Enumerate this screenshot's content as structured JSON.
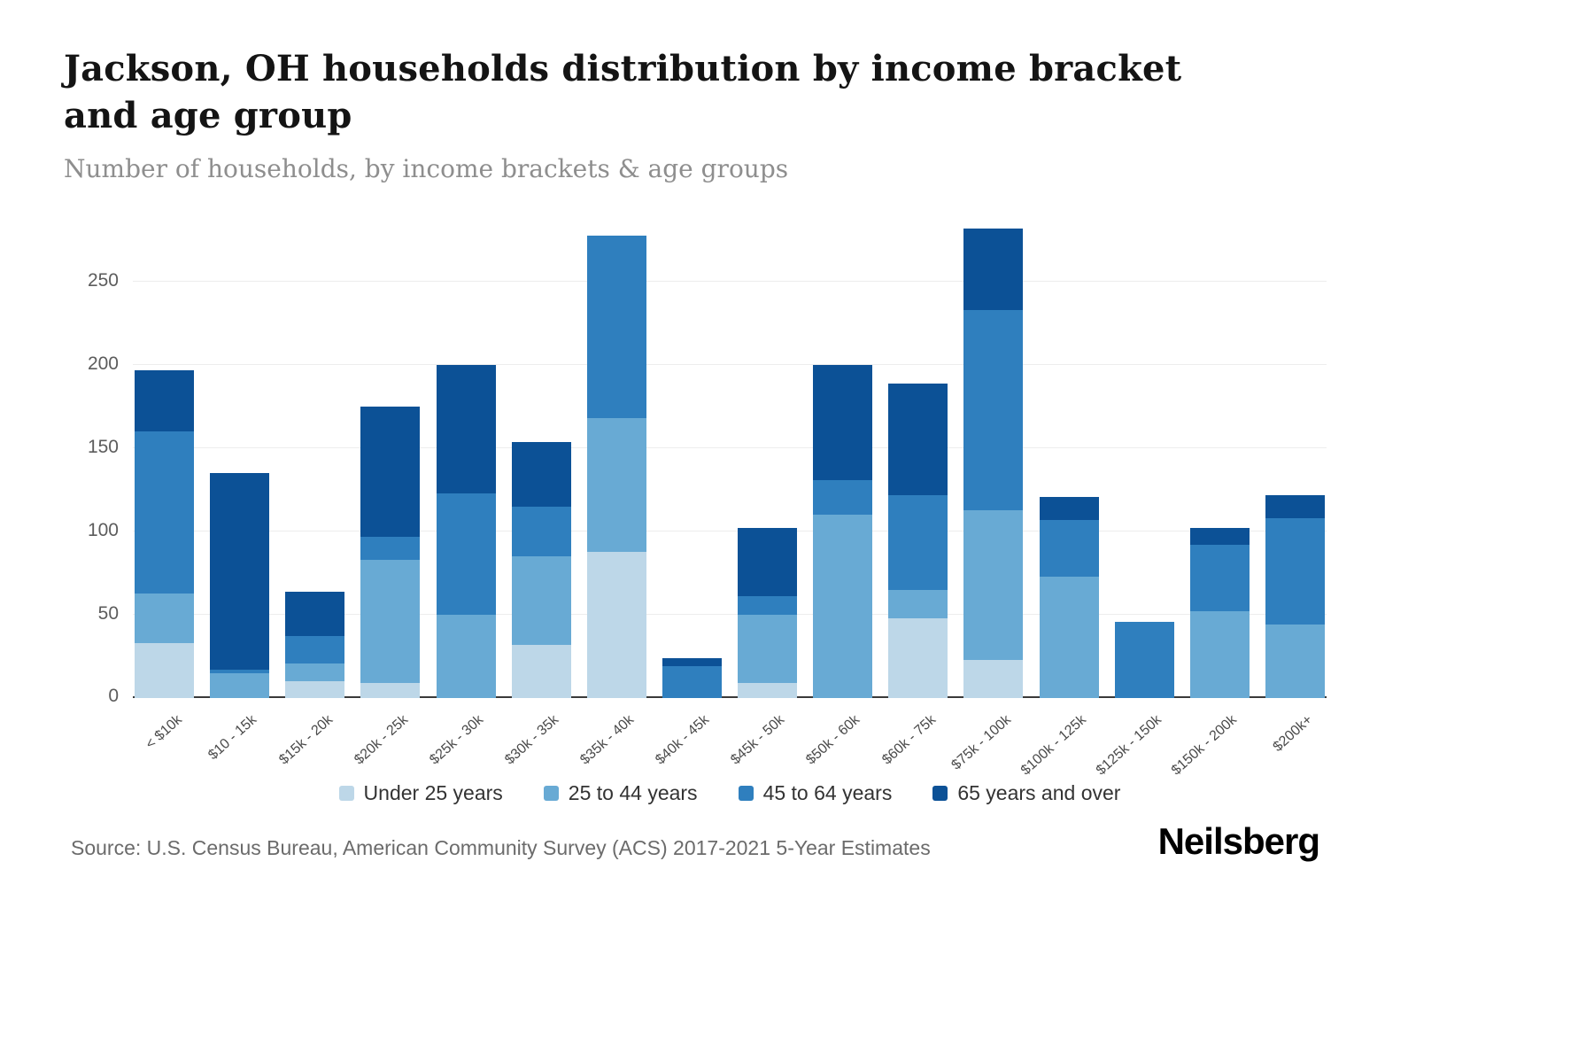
{
  "header": {
    "title": "Jackson, OH households distribution by income bracket and age group",
    "subtitle": "Number of households, by income brackets & age groups"
  },
  "footer": {
    "source": "Source: U.S. Census Bureau, American Community Survey (ACS) 2017-2021 5-Year Estimates",
    "brand": "Neilsberg"
  },
  "chart_data": {
    "type": "bar",
    "stacked": true,
    "title": "Jackson, OH households distribution by income bracket and age group",
    "xlabel": "",
    "ylabel": "Number of households",
    "categories": [
      "< $10k",
      "$10 - 15k",
      "$15k - 20k",
      "$20k - 25k",
      "$25k - 30k",
      "$30k - 35k",
      "$35k - 40k",
      "$40k - 45k",
      "$45k - 50k",
      "$50k - 60k",
      "$60k - 75k",
      "$75k - 100k",
      "$100k - 125k",
      "$125k - 150k",
      "$150k - 200k",
      "$200k+"
    ],
    "series": [
      {
        "name": "Under 25 years",
        "color": "#bdd7e8",
        "values": [
          33,
          0,
          10,
          9,
          0,
          32,
          88,
          0,
          9,
          0,
          48,
          23,
          0,
          0,
          0,
          0
        ]
      },
      {
        "name": "25 to 44 years",
        "color": "#68aad4",
        "values": [
          30,
          15,
          11,
          74,
          50,
          53,
          80,
          0,
          41,
          110,
          17,
          90,
          73,
          0,
          52,
          44
        ]
      },
      {
        "name": "45 to 64 years",
        "color": "#2f7fbe",
        "values": [
          97,
          2,
          16,
          14,
          73,
          30,
          110,
          19,
          11,
          21,
          57,
          120,
          34,
          46,
          40,
          64
        ]
      },
      {
        "name": "65 years and over",
        "color": "#0c5196",
        "values": [
          37,
          118,
          27,
          78,
          77,
          39,
          0,
          5,
          41,
          69,
          67,
          49,
          14,
          0,
          10,
          14
        ]
      }
    ],
    "yticks": [
      0,
      50,
      100,
      150,
      200,
      250
    ],
    "ymax": 290,
    "grid": "horizontal",
    "legend_position": "bottom"
  }
}
